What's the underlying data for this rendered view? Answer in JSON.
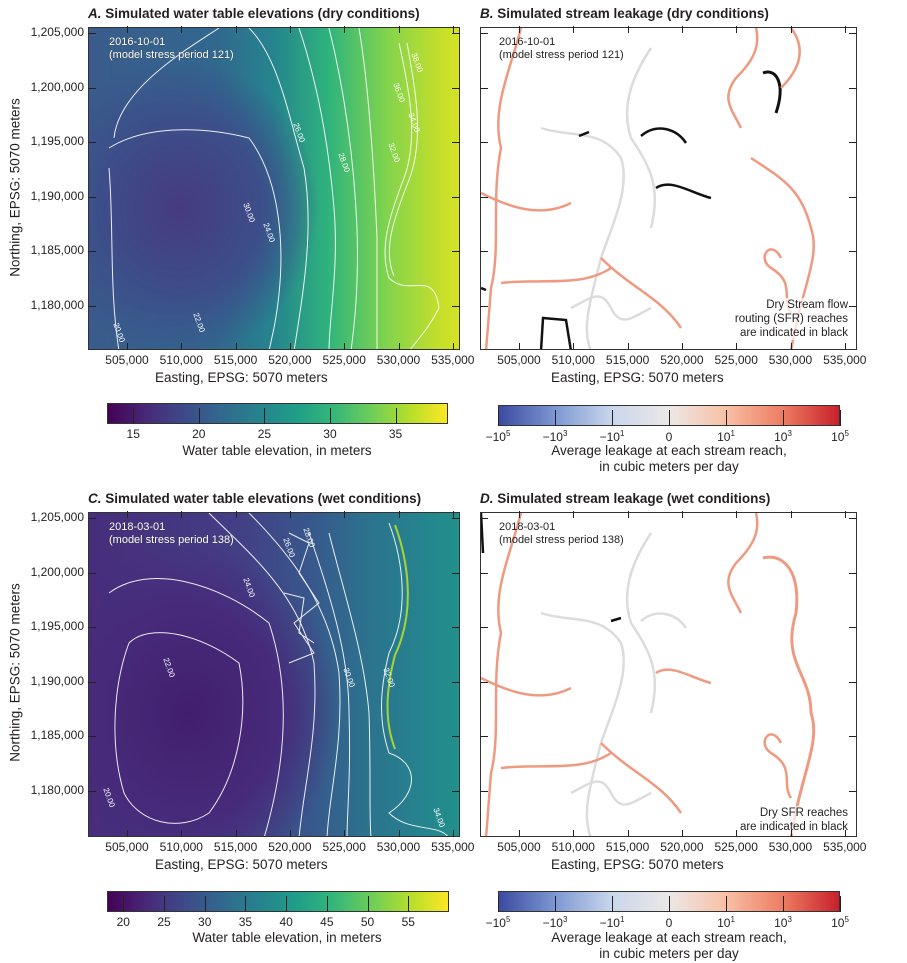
{
  "panels": {
    "a": {
      "letter": "A.",
      "title": "Simulated water table elevations (dry conditions)",
      "date": "2016-10-01",
      "period": "(model stress period 121)",
      "contour_labels": [
        "20.00",
        "22.00",
        "24.00",
        "26.00",
        "28.00",
        "30.00",
        "32.00",
        "34.00",
        "36.00",
        "38.00"
      ]
    },
    "b": {
      "letter": "B.",
      "title": "Simulated stream leakage (dry conditions)",
      "date": "2016-10-01",
      "period": "(model stress period 121)",
      "note_lines": [
        "Dry Stream flow",
        "routing (SFR) reaches",
        "are indicated in black"
      ]
    },
    "c": {
      "letter": "C.",
      "title": "Simulated water table elevations (wet conditions)",
      "date": "2018-03-01",
      "period": "(model stress period 138)",
      "contour_labels": [
        "20.00",
        "22.00",
        "24.00",
        "26.00",
        "28.00",
        "30.00",
        "32.00",
        "34.00"
      ]
    },
    "d": {
      "letter": "D.",
      "title": "Simulated stream leakage (wet conditions)",
      "date": "2018-03-01",
      "period": "(model stress period 138)",
      "note_lines": [
        "Dry SFR reaches",
        "are indicated in black"
      ]
    }
  },
  "axes": {
    "xlabel": "Easting, EPSG: 5070 meters",
    "ylabel": "Northing, EPSG: 5070 meters",
    "xticks": [
      "505,000",
      "510,000",
      "515,000",
      "520,000",
      "525,000",
      "530,000",
      "535,000"
    ],
    "yticks": [
      "1,205,000",
      "1,200,000",
      "1,195,000",
      "1,190,000",
      "1,185,000",
      "1,180,000"
    ]
  },
  "colorbars": {
    "dry_elev": {
      "title": "Water table elevation, in meters",
      "range": [
        13,
        39
      ],
      "ticks": [
        "15",
        "20",
        "25",
        "30",
        "35"
      ],
      "colormap": "viridis"
    },
    "wet_elev": {
      "title": "Water table elevation, in meters",
      "range": [
        18,
        60
      ],
      "ticks": [
        "20",
        "25",
        "30",
        "35",
        "40",
        "45",
        "50",
        "55"
      ],
      "colormap": "viridis"
    },
    "leak": {
      "title_lines": [
        "Average leakage at each stream reach,",
        "in cubic meters per day"
      ],
      "ticks": [
        {
          "base": "−10",
          "exp": "5"
        },
        {
          "base": "−10",
          "exp": "3"
        },
        {
          "base": "−10",
          "exp": "1"
        },
        {
          "base": "0",
          "exp": ""
        },
        {
          "base": "10",
          "exp": "1"
        },
        {
          "base": "10",
          "exp": "3"
        },
        {
          "base": "10",
          "exp": "5"
        }
      ],
      "colormap": "RdBu_r (blue negative, red positive)"
    }
  },
  "colors": {
    "dry_reach": "#000000",
    "gaining": "#ee8a70",
    "neutral": "#d9d9d9",
    "contour": "#ffffff"
  }
}
